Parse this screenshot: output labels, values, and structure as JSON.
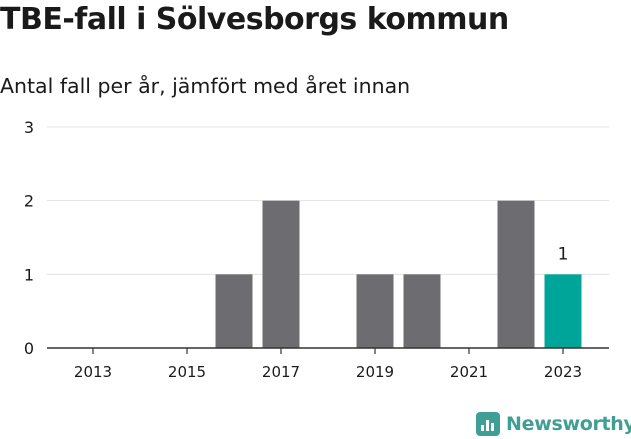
{
  "title": "TBE-fall i Sölvesborgs kommun",
  "subtitle": "Antal fall per år, jämfört med året innan",
  "brand": {
    "name": "Newsworthy",
    "color": "#3f9f94"
  },
  "chart_data": {
    "type": "bar",
    "x": [
      2013,
      2014,
      2015,
      2016,
      2017,
      2018,
      2019,
      2020,
      2021,
      2022,
      2023
    ],
    "values": [
      0,
      0,
      0,
      1,
      2,
      0,
      1,
      1,
      0,
      2,
      1
    ],
    "ylim": [
      0,
      3
    ],
    "yticks": [
      0,
      1,
      2,
      3
    ],
    "xticks": [
      2013,
      2015,
      2017,
      2019,
      2021,
      2023
    ],
    "grid": true,
    "highlight": {
      "index": 10,
      "label": "1"
    },
    "colors": {
      "bar": "#6d6c70",
      "highlight": "#00a59a",
      "grid": "#e3e3e3",
      "axis": "#333333"
    }
  }
}
